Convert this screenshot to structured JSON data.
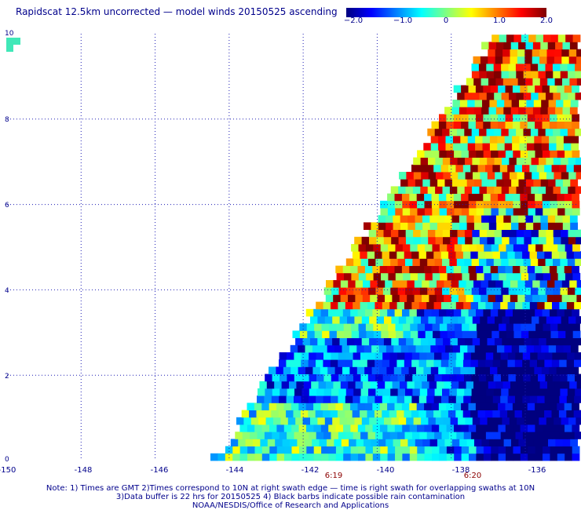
{
  "title": "Rapidscat 12.5km uncorrected — model winds 20150525 ascending",
  "colorbar": {
    "labels": [
      "−2.0",
      "−1.0",
      "0",
      "1.0",
      "2.0"
    ],
    "values": [
      -2.0,
      -1.0,
      0,
      1.0,
      2.0
    ],
    "colors": [
      "#00007f",
      "#0000ff",
      "#0080ff",
      "#00ffff",
      "#80ff80",
      "#ffff00",
      "#ff8000",
      "#ff0000",
      "#7f0000"
    ]
  },
  "axes": {
    "x_ticks": [
      "-150",
      "-148",
      "-146",
      "-144",
      "-142",
      "-140",
      "-138",
      "-136"
    ],
    "x_values": [
      -150,
      -148,
      -146,
      -144,
      -142,
      -140,
      -138,
      -136
    ],
    "y_ticks": [
      "0",
      "2",
      "4",
      "6",
      "8",
      "10"
    ],
    "y_values": [
      0,
      2,
      4,
      6,
      8,
      10
    ],
    "xlim": [
      -150,
      -134.6
    ],
    "ylim": [
      0,
      10
    ]
  },
  "times": [
    {
      "label": "6:19",
      "lon": -141.4
    },
    {
      "label": "6:20",
      "lon": -137.7
    }
  ],
  "notes": {
    "line1": "Note: 1) Times are GMT 2)Times correspond to 10N at right swath edge — time is right swath for overlapping swaths at 10N",
    "line2": "3)Data buffer is 22 hrs for 20150525 4) Black barbs indicate possible rain contamination",
    "line3": "NOAA/NESDIS/Office of Research and Applications"
  }
}
